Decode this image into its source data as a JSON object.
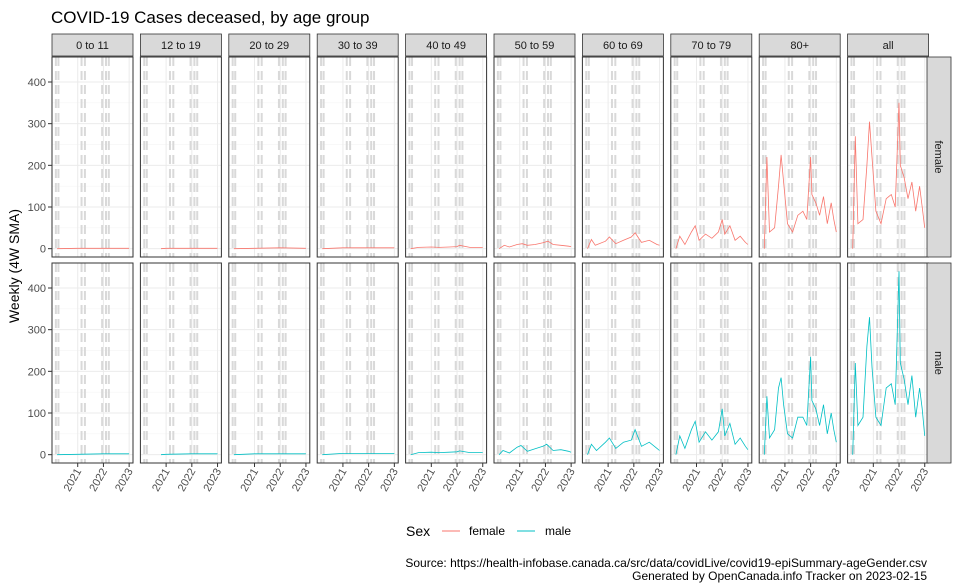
{
  "chart_data": {
    "type": "line",
    "title": "COVID-19 Cases deceased, by age group",
    "ylabel": "Weekly (4W SMA)",
    "xlabel": "",
    "ylim": [
      -20,
      460
    ],
    "yticks": [
      0,
      100,
      200,
      300,
      400
    ],
    "xlim": [
      2020.0,
      2023.15
    ],
    "xticks": [
      2021,
      2022,
      2023
    ],
    "grid": true,
    "legend_position": "bottom",
    "legend_title": "Sex",
    "colors": {
      "female": "#F8766D",
      "male": "#00BFC4",
      "strip": "#d9d9d9",
      "grid": "#ebebeb",
      "refline": "#d9d9d9"
    },
    "facet_cols": [
      "0 to 11",
      "12 to 19",
      "20 to 29",
      "30 to 39",
      "40 to 49",
      "50 to 59",
      "60 to 69",
      "70 to 79",
      "80+",
      "all"
    ],
    "facet_rows": [
      "female",
      "male"
    ],
    "reference_lines_x": [
      2020.15,
      2020.25,
      2021.15,
      2021.28,
      2021.95,
      2022.1,
      2022.21
    ],
    "series": [
      {
        "name": "female",
        "panels": {
          "0 to 11": {
            "x": [
              2020.2,
              2021.0,
              2022.0,
              2023.0
            ],
            "y": [
              0,
              1,
              1,
              1
            ]
          },
          "12 to 19": {
            "x": [
              2020.8,
              2021.0,
              2022.0,
              2023.0
            ],
            "y": [
              0,
              1,
              1,
              1
            ]
          },
          "20 to 29": {
            "x": [
              2020.2,
              2021.0,
              2022.0,
              2023.0
            ],
            "y": [
              0,
              1,
              2,
              1
            ]
          },
          "30 to 39": {
            "x": [
              2020.2,
              2021.0,
              2022.0,
              2023.0
            ],
            "y": [
              0,
              2,
              2,
              2
            ]
          },
          "40 to 49": {
            "x": [
              2020.2,
              2020.5,
              2021.0,
              2021.3,
              2021.7,
              2022.0,
              2022.1,
              2022.5,
              2023.0
            ],
            "y": [
              0,
              3,
              4,
              3,
              4,
              5,
              8,
              3,
              3
            ]
          },
          "50 to 59": {
            "x": [
              2020.2,
              2020.4,
              2020.6,
              2020.9,
              2021.1,
              2021.3,
              2021.6,
              2021.9,
              2022.1,
              2022.3,
              2022.6,
              2022.9,
              2023.0
            ],
            "y": [
              0,
              8,
              4,
              10,
              12,
              8,
              10,
              14,
              18,
              10,
              8,
              6,
              5
            ]
          },
          "60 to 69": {
            "x": [
              2020.2,
              2020.35,
              2020.5,
              2020.9,
              2021.05,
              2021.3,
              2021.6,
              2021.9,
              2022.05,
              2022.3,
              2022.6,
              2022.9,
              2023.0
            ],
            "y": [
              0,
              22,
              8,
              18,
              28,
              12,
              20,
              28,
              38,
              15,
              20,
              10,
              8
            ]
          },
          "70 to 79": {
            "x": [
              2020.2,
              2020.35,
              2020.55,
              2020.8,
              2020.95,
              2021.1,
              2021.35,
              2021.6,
              2021.85,
              2022.0,
              2022.1,
              2022.3,
              2022.5,
              2022.7,
              2022.9,
              2023.0
            ],
            "y": [
              0,
              30,
              10,
              40,
              55,
              20,
              35,
              25,
              40,
              70,
              35,
              55,
              20,
              30,
              15,
              10
            ]
          },
          "80+": {
            "x": [
              2020.2,
              2020.3,
              2020.4,
              2020.6,
              2020.75,
              2020.85,
              2020.95,
              2021.1,
              2021.3,
              2021.5,
              2021.7,
              2021.85,
              2022.0,
              2022.05,
              2022.2,
              2022.35,
              2022.5,
              2022.65,
              2022.8,
              2022.9,
              2023.0
            ],
            "y": [
              0,
              220,
              40,
              50,
              150,
              225,
              160,
              60,
              40,
              80,
              90,
              70,
              220,
              130,
              110,
              80,
              125,
              60,
              110,
              70,
              40
            ]
          },
          "all": {
            "x": [
              2020.2,
              2020.3,
              2020.4,
              2020.6,
              2020.75,
              2020.85,
              2020.95,
              2021.1,
              2021.3,
              2021.5,
              2021.7,
              2021.85,
              2022.0,
              2022.05,
              2022.2,
              2022.35,
              2022.5,
              2022.65,
              2022.8,
              2022.9,
              2023.0
            ],
            "y": [
              0,
              270,
              60,
              70,
              200,
              305,
              220,
              90,
              60,
              120,
              130,
              100,
              350,
              200,
              170,
              120,
              160,
              90,
              150,
              100,
              50
            ]
          }
        }
      },
      {
        "name": "male",
        "panels": {
          "0 to 11": {
            "x": [
              2020.2,
              2021.0,
              2022.0,
              2023.0
            ],
            "y": [
              0,
              1,
              2,
              2
            ]
          },
          "12 to 19": {
            "x": [
              2020.8,
              2021.0,
              2022.0,
              2023.0
            ],
            "y": [
              0,
              1,
              2,
              2
            ]
          },
          "20 to 29": {
            "x": [
              2020.2,
              2021.0,
              2022.0,
              2023.0
            ],
            "y": [
              0,
              2,
              2,
              2
            ]
          },
          "30 to 39": {
            "x": [
              2020.2,
              2021.0,
              2022.0,
              2023.0
            ],
            "y": [
              0,
              3,
              3,
              3
            ]
          },
          "40 to 49": {
            "x": [
              2020.2,
              2020.5,
              2021.0,
              2021.3,
              2021.7,
              2022.0,
              2022.1,
              2022.5,
              2023.0
            ],
            "y": [
              0,
              5,
              6,
              5,
              6,
              7,
              9,
              5,
              5
            ]
          },
          "50 to 59": {
            "x": [
              2020.2,
              2020.35,
              2020.6,
              2020.9,
              2021.05,
              2021.3,
              2021.6,
              2021.9,
              2022.05,
              2022.3,
              2022.6,
              2022.9,
              2023.0
            ],
            "y": [
              0,
              10,
              4,
              18,
              22,
              8,
              14,
              20,
              25,
              10,
              12,
              8,
              6
            ]
          },
          "60 to 69": {
            "x": [
              2020.2,
              2020.35,
              2020.55,
              2020.9,
              2021.05,
              2021.3,
              2021.6,
              2021.9,
              2022.05,
              2022.3,
              2022.6,
              2022.9,
              2023.0
            ],
            "y": [
              0,
              25,
              10,
              30,
              40,
              15,
              30,
              35,
              60,
              20,
              30,
              15,
              10
            ]
          },
          "70 to 79": {
            "x": [
              2020.2,
              2020.35,
              2020.55,
              2020.8,
              2020.95,
              2021.1,
              2021.35,
              2021.6,
              2021.85,
              2022.0,
              2022.1,
              2022.3,
              2022.5,
              2022.7,
              2022.9,
              2023.0
            ],
            "y": [
              0,
              45,
              15,
              60,
              80,
              30,
              55,
              35,
              55,
              110,
              45,
              75,
              25,
              40,
              20,
              12
            ]
          },
          "80+": {
            "x": [
              2020.2,
              2020.3,
              2020.4,
              2020.6,
              2020.75,
              2020.85,
              2020.95,
              2021.1,
              2021.3,
              2021.5,
              2021.7,
              2021.85,
              2022.0,
              2022.05,
              2022.2,
              2022.35,
              2022.5,
              2022.65,
              2022.8,
              2022.9,
              2023.0
            ],
            "y": [
              0,
              140,
              40,
              60,
              160,
              185,
              120,
              50,
              40,
              90,
              90,
              70,
              235,
              130,
              110,
              70,
              120,
              50,
              100,
              60,
              30
            ]
          },
          "all": {
            "x": [
              2020.2,
              2020.3,
              2020.4,
              2020.6,
              2020.75,
              2020.85,
              2020.95,
              2021.1,
              2021.3,
              2021.5,
              2021.7,
              2021.85,
              2022.0,
              2022.05,
              2022.2,
              2022.35,
              2022.5,
              2022.65,
              2022.8,
              2022.9,
              2023.0
            ],
            "y": [
              0,
              220,
              70,
              90,
              260,
              330,
              210,
              90,
              70,
              160,
              170,
              120,
              440,
              220,
              180,
              120,
              190,
              90,
              160,
              110,
              45
            ]
          }
        }
      }
    ]
  },
  "caption": {
    "source": "Source: https://health-infobase.canada.ca/src/data/covidLive/covid19-epiSummary-ageGender.csv",
    "generated": "Generated by OpenCanada.info Tracker on 2023-02-15"
  }
}
